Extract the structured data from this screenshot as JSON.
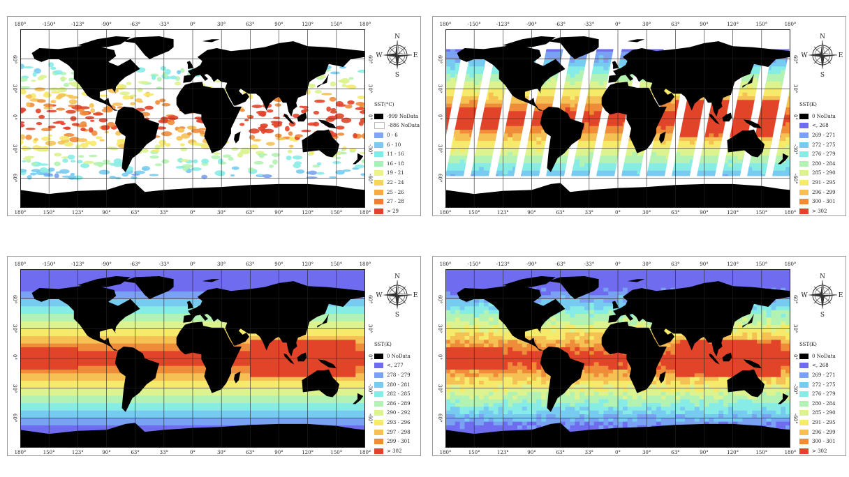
{
  "top_labels": [
    "180°",
    "-150°",
    "-123°",
    "-90°",
    "-63°",
    "-33°",
    "0°",
    "30°",
    "63°",
    "90°",
    "120°",
    "150°",
    "180°"
  ],
  "bottom_labels": [
    "180°",
    "150°",
    "123°",
    "90°",
    "63°",
    "33°",
    "0°",
    "30°",
    "63°",
    "90°",
    "120°",
    "150°",
    "180°"
  ],
  "left_lat_labels": [
    "60°",
    "30°",
    "0°",
    "30°",
    "60°"
  ],
  "right_lat_labels": [
    "60°",
    "30°",
    "0°",
    "-30°",
    "-60°"
  ],
  "compass": {
    "n": "N",
    "s": "S",
    "e": "E",
    "w": "W"
  },
  "panels": [
    {
      "id": "a",
      "legend_title": "SST(°C)",
      "mode": "clouds",
      "legend": [
        {
          "label": "-999 NoData",
          "color": "#000000"
        },
        {
          "label": "-886 NoData",
          "color": "#ffffff"
        },
        {
          "label": "0 - 6",
          "color": "#7fa6f0"
        },
        {
          "label": "6 - 10",
          "color": "#7ec8ef"
        },
        {
          "label": "11 - 16",
          "color": "#80ece8"
        },
        {
          "label": "16 - 18",
          "color": "#a6f2b8"
        },
        {
          "label": "19 - 21",
          "color": "#ecf28a"
        },
        {
          "label": "22 - 24",
          "color": "#f5d45c"
        },
        {
          "label": "25 - 26",
          "color": "#f4ad44"
        },
        {
          "label": "27 - 28",
          "color": "#ef7f32"
        },
        {
          "label": "> 29",
          "color": "#e2442a"
        }
      ]
    },
    {
      "id": "b",
      "legend_title": "SST(K)",
      "mode": "swaths",
      "legend": [
        {
          "label": "0 NoData",
          "color": "#000000"
        },
        {
          "label": "<, 268",
          "color": "#6f6cf0"
        },
        {
          "label": "269 - 271",
          "color": "#7aa2f2"
        },
        {
          "label": "272 - 275",
          "color": "#77cbf0"
        },
        {
          "label": "276 - 279",
          "color": "#88ece6"
        },
        {
          "label": "280 - 284",
          "color": "#b2f3b3"
        },
        {
          "label": "285 - 290",
          "color": "#dcf38f"
        },
        {
          "label": "291 - 295",
          "color": "#f6ea6a"
        },
        {
          "label": "296 - 299",
          "color": "#f5c154"
        },
        {
          "label": "300 - 301",
          "color": "#ef8c3a"
        },
        {
          "label": "> 302",
          "color": "#e2442a"
        }
      ]
    },
    {
      "id": "c",
      "legend_title": "SST(K)",
      "mode": "smooth",
      "legend": [
        {
          "label": "0 NoData",
          "color": "#000000"
        },
        {
          "label": "<, 277",
          "color": "#6f6cf0"
        },
        {
          "label": "278 - 279",
          "color": "#7aa2f2"
        },
        {
          "label": "280 - 281",
          "color": "#77cbf0"
        },
        {
          "label": "282 - 285",
          "color": "#88ece6"
        },
        {
          "label": "286 - 289",
          "color": "#b2f3b3"
        },
        {
          "label": "290 - 292",
          "color": "#dcf38f"
        },
        {
          "label": "293 - 296",
          "color": "#f6ea6a"
        },
        {
          "label": "297 - 298",
          "color": "#f5c154"
        },
        {
          "label": "299 - 301",
          "color": "#ef8c3a"
        },
        {
          "label": "> 302",
          "color": "#e2442a"
        }
      ]
    },
    {
      "id": "d",
      "legend_title": "SST(K)",
      "mode": "noisy",
      "legend": [
        {
          "label": "0 NoData",
          "color": "#000000"
        },
        {
          "label": "<, 268",
          "color": "#6f6cf0"
        },
        {
          "label": "269 - 271",
          "color": "#7aa2f2"
        },
        {
          "label": "272 - 275",
          "color": "#77cbf0"
        },
        {
          "label": "276 - 279",
          "color": "#88ece6"
        },
        {
          "label": "280 - 284",
          "color": "#b2f3b3"
        },
        {
          "label": "285 - 290",
          "color": "#dcf38f"
        },
        {
          "label": "291 - 295",
          "color": "#f6ea6a"
        },
        {
          "label": "296 - 299",
          "color": "#f5c154"
        },
        {
          "label": "300 - 301",
          "color": "#ef8c3a"
        },
        {
          "label": "> 302",
          "color": "#e2442a"
        }
      ]
    }
  ]
}
